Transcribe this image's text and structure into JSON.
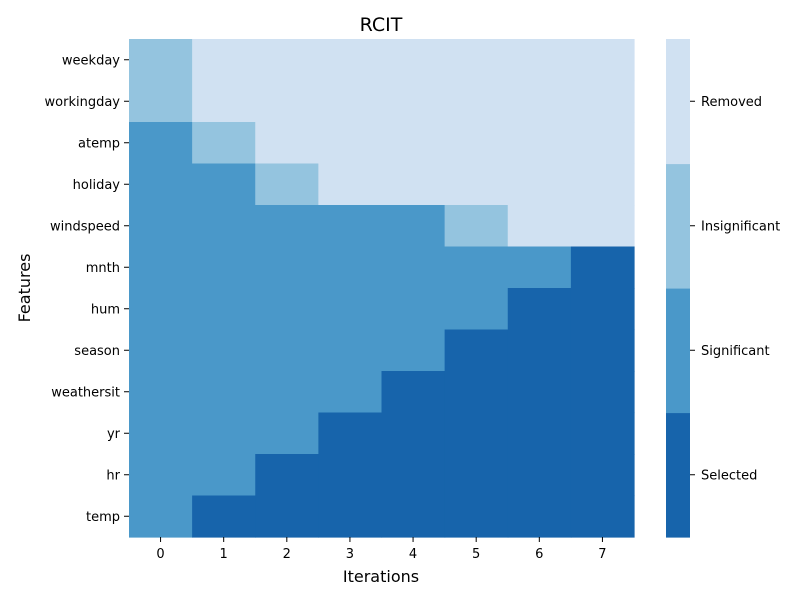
{
  "chart_data": {
    "type": "heatmap",
    "title": "RCIT",
    "xlabel": "Iterations",
    "ylabel": "Features",
    "x_categories": [
      "0",
      "1",
      "2",
      "3",
      "4",
      "5",
      "6",
      "7"
    ],
    "y_categories": [
      "weekday",
      "workingday",
      "atemp",
      "holiday",
      "windspeed",
      "mnth",
      "hum",
      "season",
      "weathersit",
      "yr",
      "hr",
      "temp"
    ],
    "status_codes": {
      "0": "Selected",
      "1": "Significant",
      "2": "Insignificant",
      "3": "Removed"
    },
    "values": [
      [
        2,
        3,
        3,
        3,
        3,
        3,
        3,
        3
      ],
      [
        2,
        3,
        3,
        3,
        3,
        3,
        3,
        3
      ],
      [
        1,
        2,
        3,
        3,
        3,
        3,
        3,
        3
      ],
      [
        1,
        1,
        2,
        3,
        3,
        3,
        3,
        3
      ],
      [
        1,
        1,
        1,
        1,
        1,
        2,
        3,
        3
      ],
      [
        1,
        1,
        1,
        1,
        1,
        1,
        1,
        0
      ],
      [
        1,
        1,
        1,
        1,
        1,
        1,
        0,
        0
      ],
      [
        1,
        1,
        1,
        1,
        1,
        0,
        0,
        0
      ],
      [
        1,
        1,
        1,
        1,
        0,
        0,
        0,
        0
      ],
      [
        1,
        1,
        1,
        0,
        0,
        0,
        0,
        0
      ],
      [
        1,
        1,
        0,
        0,
        0,
        0,
        0,
        0
      ],
      [
        1,
        0,
        0,
        0,
        0,
        0,
        0,
        0
      ]
    ],
    "colorbar": {
      "labels": [
        "Selected",
        "Significant",
        "Insignificant",
        "Removed"
      ],
      "colors": [
        "#1764ab",
        "#4a98c9",
        "#94c4df",
        "#d0e1f2"
      ]
    },
    "grid": false
  }
}
